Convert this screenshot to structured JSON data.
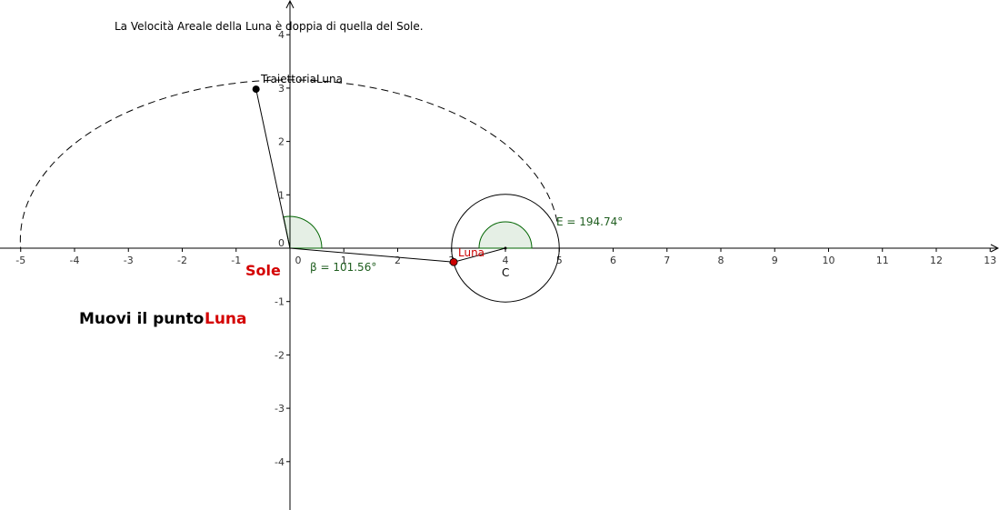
{
  "title": "La Velocità Areale della Luna è doppia di quella del Sole.",
  "axes": {
    "xticks": [
      -5,
      -4,
      -3,
      -2,
      -1,
      0,
      1,
      2,
      3,
      4,
      5,
      6,
      7,
      8,
      9,
      10,
      11,
      12,
      13
    ],
    "yticks": [
      -4,
      -3,
      -2,
      -1,
      0,
      1,
      2,
      3,
      4
    ]
  },
  "labels": {
    "trajectory": "TraiettoriaLuna",
    "moon_point": "Luna",
    "center": "C",
    "angle_e": "E = 194.74°",
    "angle_beta": "β = 101.56°",
    "sun": "Sole"
  },
  "instruction": {
    "text": "Muovi il punto",
    "highlight": "Luna"
  }
}
